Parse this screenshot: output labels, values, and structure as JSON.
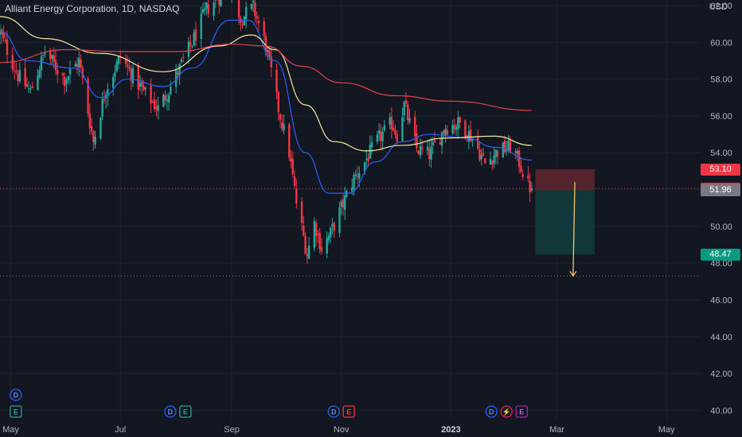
{
  "header": {
    "title": "Alliant Energy Corporation, 1D, NASDAQ",
    "currency": "USD"
  },
  "colors": {
    "background": "#131722",
    "up": "#26a69a",
    "down": "#f23645",
    "grid": "#1e222d",
    "ema_fast": "#2962ff",
    "ema_mid": "#f7e8a0",
    "ema_slow": "#e0434d",
    "risk_zone": "#5c2530",
    "reward_zone": "#12393d",
    "arrow": "#f5c26b"
  },
  "chart_data": {
    "type": "candlestick",
    "title": "Alliant Energy Corporation, 1D, NASDAQ",
    "y_unit": "USD",
    "ylim": [
      39.5,
      62.3
    ],
    "x_range": [
      "2022-04-25",
      "2023-05-20"
    ],
    "y_ticks": [
      40,
      42,
      44,
      46,
      48,
      50,
      52,
      54,
      56,
      58,
      60,
      62
    ],
    "y_tick_labels": [
      "40.00",
      "42.00",
      "44.00",
      "46.00",
      "48.00",
      "50.00",
      "52.00",
      "54.00",
      "56.00",
      "58.00",
      "60.00",
      "62.00"
    ],
    "x_ticks": [
      {
        "date": "2022-05-01",
        "label": "May",
        "bold": false
      },
      {
        "date": "2022-07-01",
        "label": "Jul",
        "bold": false
      },
      {
        "date": "2022-09-01",
        "label": "Sep",
        "bold": false
      },
      {
        "date": "2022-11-01",
        "label": "Nov",
        "bold": false
      },
      {
        "date": "2023-01-01",
        "label": "2023",
        "bold": true
      },
      {
        "date": "2023-03-01",
        "label": "Mar",
        "bold": false
      },
      {
        "date": "2023-05-01",
        "label": "May",
        "bold": false
      }
    ],
    "price_anchors": [
      [
        "2022-04-25",
        60.5
      ],
      [
        "2022-05-05",
        58.2
      ],
      [
        "2022-05-12",
        57.3
      ],
      [
        "2022-05-20",
        59.5
      ],
      [
        "2022-05-31",
        58.0
      ],
      [
        "2022-06-08",
        59.0
      ],
      [
        "2022-06-16",
        54.6
      ],
      [
        "2022-06-23",
        57.5
      ],
      [
        "2022-07-01",
        59.2
      ],
      [
        "2022-07-14",
        57.3
      ],
      [
        "2022-07-22",
        56.4
      ],
      [
        "2022-07-29",
        57.6
      ],
      [
        "2022-08-10",
        60.0
      ],
      [
        "2022-08-18",
        61.8
      ],
      [
        "2022-08-24",
        62.4
      ],
      [
        "2022-09-01",
        62.8
      ],
      [
        "2022-09-06",
        61.3
      ],
      [
        "2022-09-13",
        61.9
      ],
      [
        "2022-09-20",
        59.8
      ],
      [
        "2022-09-27",
        56.4
      ],
      [
        "2022-10-03",
        54.0
      ],
      [
        "2022-10-07",
        51.3
      ],
      [
        "2022-10-13",
        48.5
      ],
      [
        "2022-10-17",
        50.2
      ],
      [
        "2022-10-21",
        48.8
      ],
      [
        "2022-10-26",
        49.6
      ],
      [
        "2022-11-01",
        51.0
      ],
      [
        "2022-11-08",
        52.6
      ],
      [
        "2022-11-14",
        53.5
      ],
      [
        "2022-11-22",
        54.8
      ],
      [
        "2022-11-29",
        55.6
      ],
      [
        "2022-12-02",
        55.0
      ],
      [
        "2022-12-06",
        56.6
      ],
      [
        "2022-12-13",
        54.2
      ],
      [
        "2022-12-20",
        53.9
      ],
      [
        "2022-12-29",
        55.4
      ],
      [
        "2023-01-06",
        55.6
      ],
      [
        "2023-01-13",
        54.8
      ],
      [
        "2023-01-20",
        53.4
      ],
      [
        "2023-01-27",
        54.1
      ],
      [
        "2023-02-03",
        54.3
      ],
      [
        "2023-02-08",
        53.5
      ],
      [
        "2023-02-13",
        52.2
      ],
      [
        "2023-02-15",
        52.06
      ]
    ],
    "moving_averages": {
      "ema_fast": [
        [
          "2022-04-25",
          60.6
        ],
        [
          "2022-05-10",
          59.0
        ],
        [
          "2022-06-05",
          58.6
        ],
        [
          "2022-06-20",
          57.0
        ],
        [
          "2022-07-05",
          58.0
        ],
        [
          "2022-07-25",
          57.6
        ],
        [
          "2022-08-10",
          58.6
        ],
        [
          "2022-08-31",
          61.2
        ],
        [
          "2022-09-10",
          61.2
        ],
        [
          "2022-09-25",
          59.0
        ],
        [
          "2022-10-12",
          54.0
        ],
        [
          "2022-10-25",
          51.8
        ],
        [
          "2022-11-05",
          51.8
        ],
        [
          "2022-11-20",
          53.5
        ],
        [
          "2022-12-05",
          54.6
        ],
        [
          "2022-12-20",
          55.0
        ],
        [
          "2023-01-10",
          54.8
        ],
        [
          "2023-01-25",
          54.3
        ],
        [
          "2023-02-15",
          53.6
        ]
      ],
      "ema_mid": [
        [
          "2022-04-25",
          61.4
        ],
        [
          "2022-05-20",
          60.2
        ],
        [
          "2022-06-20",
          59.4
        ],
        [
          "2022-07-25",
          58.4
        ],
        [
          "2022-08-25",
          59.8
        ],
        [
          "2022-09-12",
          60.4
        ],
        [
          "2022-09-25",
          59.6
        ],
        [
          "2022-10-12",
          56.6
        ],
        [
          "2022-10-28",
          54.6
        ],
        [
          "2022-11-15",
          54.1
        ],
        [
          "2022-12-05",
          54.4
        ],
        [
          "2022-12-30",
          54.8
        ],
        [
          "2023-01-25",
          54.9
        ],
        [
          "2023-02-15",
          54.4
        ]
      ],
      "ema_slow": [
        [
          "2022-04-25",
          58.9
        ],
        [
          "2022-06-01",
          59.6
        ],
        [
          "2022-07-01",
          59.5
        ],
        [
          "2022-08-01",
          59.5
        ],
        [
          "2022-09-01",
          59.9
        ],
        [
          "2022-09-20",
          59.8
        ],
        [
          "2022-10-10",
          58.7
        ],
        [
          "2022-11-01",
          57.8
        ],
        [
          "2022-12-01",
          57.1
        ],
        [
          "2023-01-01",
          56.8
        ],
        [
          "2023-02-15",
          56.3
        ]
      ]
    },
    "position_tool": {
      "start_date": "2023-02-17",
      "end_date": "2023-03-22",
      "entry": 51.96,
      "stop": 53.1,
      "target": 48.47
    },
    "projection_arrow": {
      "from_date": "2023-03-11",
      "from_price": 52.4,
      "to_date": "2023-03-10",
      "to_price": 47.3
    },
    "horizontal_lines": [
      {
        "price": 52.06,
        "color": "#f23645"
      },
      {
        "price": 47.3,
        "color": "#787b86"
      }
    ],
    "price_labels": [
      {
        "price": 53.1,
        "text": "53.10",
        "color": "#f23645"
      },
      {
        "price": 52.06,
        "text": "52.06",
        "color": "#f23645"
      },
      {
        "price": 51.96,
        "text": "51.96",
        "color": "#787b86"
      },
      {
        "price": 48.47,
        "text": "48.47",
        "color": "#089981"
      }
    ],
    "events": [
      {
        "date": "2022-05-06",
        "items": [
          {
            "letter": "D",
            "style": "dividend"
          },
          {
            "letter": "E",
            "style": "earnings-green"
          }
        ]
      },
      {
        "date": "2022-08-02",
        "items": [
          {
            "letter": "D",
            "style": "dividend"
          },
          {
            "letter": "E",
            "style": "earnings-green"
          }
        ]
      },
      {
        "date": "2022-11-01",
        "items": [
          {
            "letter": "D",
            "style": "dividend"
          },
          {
            "letter": "E",
            "style": "earnings-red"
          }
        ]
      },
      {
        "date": "2023-02-01",
        "items": [
          {
            "letter": "D",
            "style": "dividend"
          },
          {
            "letter": "⚡",
            "style": "split"
          },
          {
            "letter": "E",
            "style": "earnings-purple"
          }
        ]
      }
    ]
  }
}
